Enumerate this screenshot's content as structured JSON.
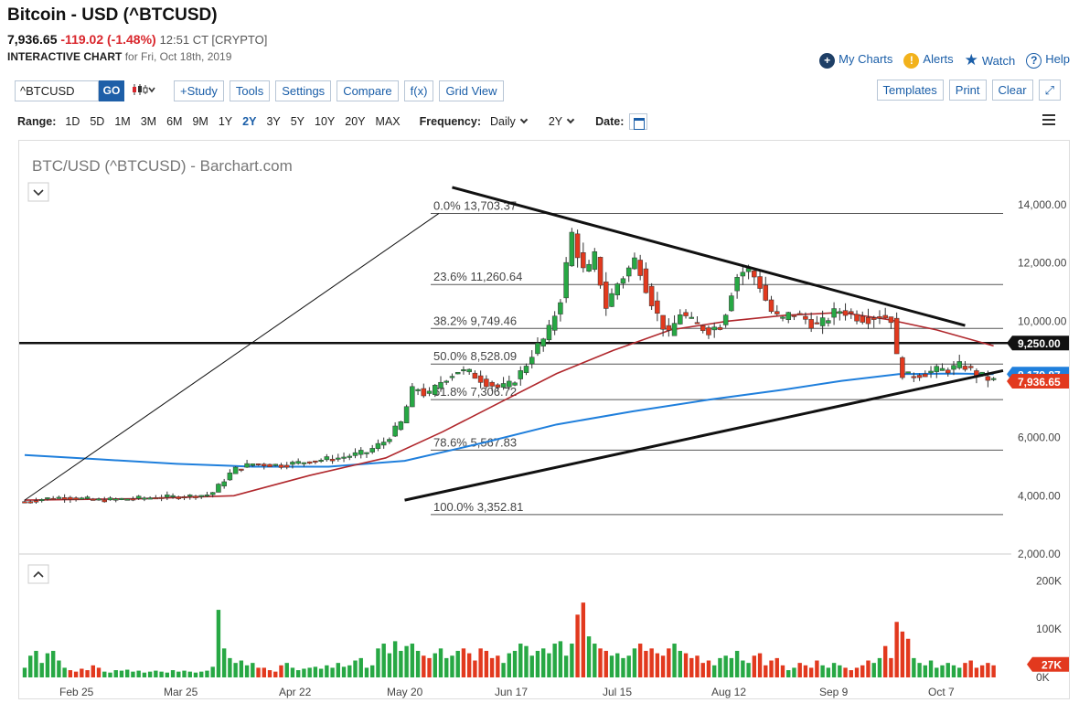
{
  "header": {
    "title": "Bitcoin - USD (^BTCUSD)",
    "price": "7,936.65",
    "change": "-119.02 (-1.48%)",
    "time": "12:51 CT [CRYPTO]",
    "subtitle_bold": "INTERACTIVE CHART",
    "subtitle_rest": "for Fri, Oct 18th, 2019"
  },
  "toplinks": {
    "my_charts": "My Charts",
    "alerts": "Alerts",
    "watch": "Watch",
    "help": "Help"
  },
  "toolbar": {
    "symbol": "^BTCUSD",
    "go": "GO",
    "study": "+Study",
    "tools": "Tools",
    "settings": "Settings",
    "compare": "Compare",
    "fx": "f(x)",
    "grid_view": "Grid View",
    "templates": "Templates",
    "print": "Print",
    "clear": "Clear"
  },
  "rangebar": {
    "label": "Range:",
    "ranges": [
      "1D",
      "5D",
      "1M",
      "3M",
      "6M",
      "9M",
      "1Y",
      "2Y",
      "3Y",
      "5Y",
      "10Y",
      "20Y",
      "MAX"
    ],
    "active": "2Y",
    "frequency_label": "Frequency:",
    "frequency": "Daily",
    "period": "2Y",
    "date_label": "Date:"
  },
  "colors": {
    "up": "#27a844",
    "down": "#e2391e",
    "ma_long": "#1f7fdc",
    "ma_short": "#b0272c"
  },
  "chart_data": {
    "type": "candlestick",
    "title": "BTC/USD (^BTCUSD) - Barchart.com",
    "y_ticks": [
      "14,000.00",
      "12,000.00",
      "10,000.00",
      "8,000.00",
      "6,000.00",
      "4,000.00",
      "2,000.00"
    ],
    "y_range": [
      2000,
      14000
    ],
    "vol_ticks": [
      "200K",
      "100K",
      "0K"
    ],
    "vol_range": [
      0,
      250
    ],
    "x_labels": [
      "Feb 25",
      "Mar 25",
      "Apr 22",
      "May 20",
      "Jun 17",
      "Jul 15",
      "Aug 12",
      "Sep 9",
      "Oct 7"
    ],
    "fib_levels": [
      {
        "label": "0.0% 13,703.37",
        "value": 13703.37
      },
      {
        "label": "23.6% 11,260.64",
        "value": 11260.64
      },
      {
        "label": "38.2% 9,749.46",
        "value": 9749.46
      },
      {
        "label": "50.0% 8,528.09",
        "value": 8528.09
      },
      {
        "label": "61.8% 7,306.72",
        "value": 7306.72
      },
      {
        "label": "78.6% 5,567.83",
        "value": 5567.83
      },
      {
        "label": "100.0% 3,352.81",
        "value": 3352.81
      }
    ],
    "price_tags": [
      {
        "label": "9,250.00",
        "value": 9250,
        "color": "#111111"
      },
      {
        "label": "8,179.87",
        "value": 8179.87,
        "color": "#1f7fdc"
      },
      {
        "label": "7,936.65",
        "value": 7936.65,
        "color": "#e2391e"
      }
    ],
    "vol_tag": {
      "label": "27K",
      "value": 27
    },
    "horizontal_line": 9250,
    "close_points": [
      [
        0,
        3800
      ],
      [
        10,
        3900
      ],
      [
        20,
        3950
      ],
      [
        30,
        3900
      ],
      [
        40,
        3850
      ],
      [
        55,
        3900
      ],
      [
        70,
        3950
      ],
      [
        85,
        3980
      ],
      [
        98,
        4050
      ],
      [
        110,
        4900
      ],
      [
        120,
        5100
      ],
      [
        135,
        5050
      ],
      [
        150,
        5200
      ],
      [
        165,
        5300
      ],
      [
        180,
        5500
      ],
      [
        190,
        5900
      ],
      [
        198,
        6500
      ],
      [
        205,
        7800
      ],
      [
        212,
        7400
      ],
      [
        220,
        8000
      ],
      [
        228,
        8300
      ],
      [
        235,
        8200
      ],
      [
        243,
        7900
      ],
      [
        250,
        7700
      ],
      [
        255,
        7800
      ],
      [
        262,
        8300
      ],
      [
        268,
        9000
      ],
      [
        275,
        9500
      ],
      [
        282,
        10800
      ],
      [
        288,
        13000
      ],
      [
        295,
        11500
      ],
      [
        300,
        12200
      ],
      [
        306,
        10500
      ],
      [
        312,
        11300
      ],
      [
        318,
        11800
      ],
      [
        322,
        12200
      ],
      [
        327,
        11200
      ],
      [
        333,
        10200
      ],
      [
        339,
        9500
      ],
      [
        345,
        10300
      ],
      [
        352,
        9900
      ],
      [
        360,
        9700
      ],
      [
        367,
        9900
      ],
      [
        374,
        11500
      ],
      [
        380,
        11800
      ],
      [
        386,
        11400
      ],
      [
        392,
        10400
      ],
      [
        398,
        10000
      ],
      [
        404,
        10300
      ],
      [
        410,
        10100
      ],
      [
        418,
        9800
      ],
      [
        424,
        10200
      ],
      [
        430,
        10400
      ],
      [
        436,
        10200
      ],
      [
        443,
        10100
      ],
      [
        450,
        10200
      ],
      [
        456,
        10100
      ],
      [
        460,
        8300
      ],
      [
        465,
        8100
      ],
      [
        472,
        8200
      ],
      [
        480,
        8300
      ],
      [
        487,
        8350
      ],
      [
        494,
        8500
      ],
      [
        500,
        8200
      ],
      [
        506,
        8050
      ],
      [
        510,
        7950
      ]
    ],
    "ma_long_points": [
      [
        0,
        5400
      ],
      [
        40,
        5250
      ],
      [
        80,
        5100
      ],
      [
        120,
        5000
      ],
      [
        160,
        5000
      ],
      [
        200,
        5200
      ],
      [
        240,
        5800
      ],
      [
        280,
        6450
      ],
      [
        320,
        6900
      ],
      [
        360,
        7300
      ],
      [
        400,
        7650
      ],
      [
        430,
        7950
      ],
      [
        460,
        8180
      ],
      [
        490,
        8200
      ],
      [
        510,
        8180
      ]
    ],
    "ma_short_points": [
      [
        0,
        3850
      ],
      [
        60,
        3900
      ],
      [
        110,
        4000
      ],
      [
        150,
        4700
      ],
      [
        190,
        5300
      ],
      [
        220,
        6200
      ],
      [
        250,
        7200
      ],
      [
        280,
        8200
      ],
      [
        310,
        9000
      ],
      [
        340,
        9700
      ],
      [
        370,
        10000
      ],
      [
        400,
        10200
      ],
      [
        430,
        10300
      ],
      [
        455,
        10050
      ],
      [
        480,
        9700
      ],
      [
        510,
        9150
      ]
    ],
    "trendlines": [
      {
        "from": [
          200,
          3850
        ],
        "to": [
          515,
          8300
        ]
      },
      {
        "from": [
          225,
          14600
        ],
        "to": [
          495,
          9850
        ]
      },
      {
        "from": [
          0,
          3850
        ],
        "to": [
          218,
          13703
        ]
      }
    ],
    "volume": [
      [
        0,
        20
      ],
      [
        3,
        45
      ],
      [
        6,
        55
      ],
      [
        9,
        30
      ],
      [
        12,
        50
      ],
      [
        15,
        55
      ],
      [
        18,
        35
      ],
      [
        21,
        20
      ],
      [
        24,
        15
      ],
      [
        27,
        12
      ],
      [
        30,
        18
      ],
      [
        33,
        15
      ],
      [
        36,
        25
      ],
      [
        39,
        20
      ],
      [
        42,
        12
      ],
      [
        45,
        10
      ],
      [
        48,
        15
      ],
      [
        51,
        14
      ],
      [
        54,
        16
      ],
      [
        57,
        12
      ],
      [
        60,
        14
      ],
      [
        63,
        10
      ],
      [
        66,
        12
      ],
      [
        69,
        14
      ],
      [
        72,
        12
      ],
      [
        75,
        10
      ],
      [
        78,
        15
      ],
      [
        81,
        12
      ],
      [
        84,
        14
      ],
      [
        87,
        12
      ],
      [
        90,
        10
      ],
      [
        93,
        12
      ],
      [
        96,
        14
      ],
      [
        99,
        22
      ],
      [
        102,
        140
      ],
      [
        105,
        60
      ],
      [
        108,
        40
      ],
      [
        111,
        30
      ],
      [
        114,
        35
      ],
      [
        117,
        25
      ],
      [
        120,
        30
      ],
      [
        123,
        20
      ],
      [
        126,
        20
      ],
      [
        129,
        15
      ],
      [
        132,
        12
      ],
      [
        135,
        25
      ],
      [
        138,
        30
      ],
      [
        141,
        20
      ],
      [
        144,
        15
      ],
      [
        147,
        18
      ],
      [
        150,
        20
      ],
      [
        153,
        22
      ],
      [
        156,
        18
      ],
      [
        159,
        25
      ],
      [
        162,
        20
      ],
      [
        165,
        30
      ],
      [
        168,
        22
      ],
      [
        171,
        25
      ],
      [
        174,
        35
      ],
      [
        177,
        40
      ],
      [
        180,
        20
      ],
      [
        183,
        25
      ],
      [
        186,
        60
      ],
      [
        189,
        70
      ],
      [
        192,
        50
      ],
      [
        195,
        75
      ],
      [
        198,
        55
      ],
      [
        201,
        65
      ],
      [
        204,
        70
      ],
      [
        207,
        55
      ],
      [
        210,
        45
      ],
      [
        213,
        40
      ],
      [
        216,
        50
      ],
      [
        219,
        60
      ],
      [
        222,
        40
      ],
      [
        225,
        45
      ],
      [
        228,
        55
      ],
      [
        231,
        60
      ],
      [
        234,
        50
      ],
      [
        237,
        35
      ],
      [
        240,
        60
      ],
      [
        243,
        55
      ],
      [
        246,
        40
      ],
      [
        249,
        45
      ],
      [
        252,
        30
      ],
      [
        255,
        50
      ],
      [
        258,
        55
      ],
      [
        261,
        70
      ],
      [
        264,
        65
      ],
      [
        267,
        45
      ],
      [
        270,
        55
      ],
      [
        273,
        60
      ],
      [
        276,
        50
      ],
      [
        279,
        70
      ],
      [
        282,
        75
      ],
      [
        285,
        45
      ],
      [
        288,
        70
      ],
      [
        291,
        130
      ],
      [
        294,
        155
      ],
      [
        297,
        85
      ],
      [
        300,
        70
      ],
      [
        303,
        60
      ],
      [
        306,
        55
      ],
      [
        309,
        45
      ],
      [
        312,
        50
      ],
      [
        315,
        40
      ],
      [
        318,
        45
      ],
      [
        321,
        60
      ],
      [
        324,
        70
      ],
      [
        327,
        55
      ],
      [
        330,
        60
      ],
      [
        333,
        50
      ],
      [
        336,
        45
      ],
      [
        339,
        60
      ],
      [
        342,
        70
      ],
      [
        345,
        55
      ],
      [
        348,
        50
      ],
      [
        351,
        40
      ],
      [
        354,
        45
      ],
      [
        357,
        30
      ],
      [
        360,
        35
      ],
      [
        363,
        25
      ],
      [
        366,
        40
      ],
      [
        369,
        45
      ],
      [
        372,
        40
      ],
      [
        375,
        55
      ],
      [
        378,
        35
      ],
      [
        381,
        30
      ],
      [
        384,
        45
      ],
      [
        387,
        50
      ],
      [
        390,
        25
      ],
      [
        393,
        35
      ],
      [
        396,
        40
      ],
      [
        399,
        25
      ],
      [
        402,
        15
      ],
      [
        405,
        20
      ],
      [
        408,
        30
      ],
      [
        411,
        25
      ],
      [
        414,
        20
      ],
      [
        417,
        35
      ],
      [
        420,
        25
      ],
      [
        423,
        20
      ],
      [
        426,
        30
      ],
      [
        429,
        25
      ],
      [
        432,
        20
      ],
      [
        435,
        15
      ],
      [
        438,
        20
      ],
      [
        441,
        25
      ],
      [
        444,
        35
      ],
      [
        447,
        30
      ],
      [
        450,
        40
      ],
      [
        453,
        65
      ],
      [
        456,
        40
      ],
      [
        459,
        115
      ],
      [
        462,
        95
      ],
      [
        465,
        80
      ],
      [
        468,
        40
      ],
      [
        471,
        30
      ],
      [
        474,
        25
      ],
      [
        477,
        35
      ],
      [
        480,
        20
      ],
      [
        483,
        25
      ],
      [
        486,
        30
      ],
      [
        489,
        25
      ],
      [
        492,
        20
      ],
      [
        495,
        30
      ],
      [
        498,
        35
      ],
      [
        501,
        20
      ],
      [
        504,
        25
      ],
      [
        507,
        30
      ],
      [
        510,
        25
      ]
    ]
  }
}
